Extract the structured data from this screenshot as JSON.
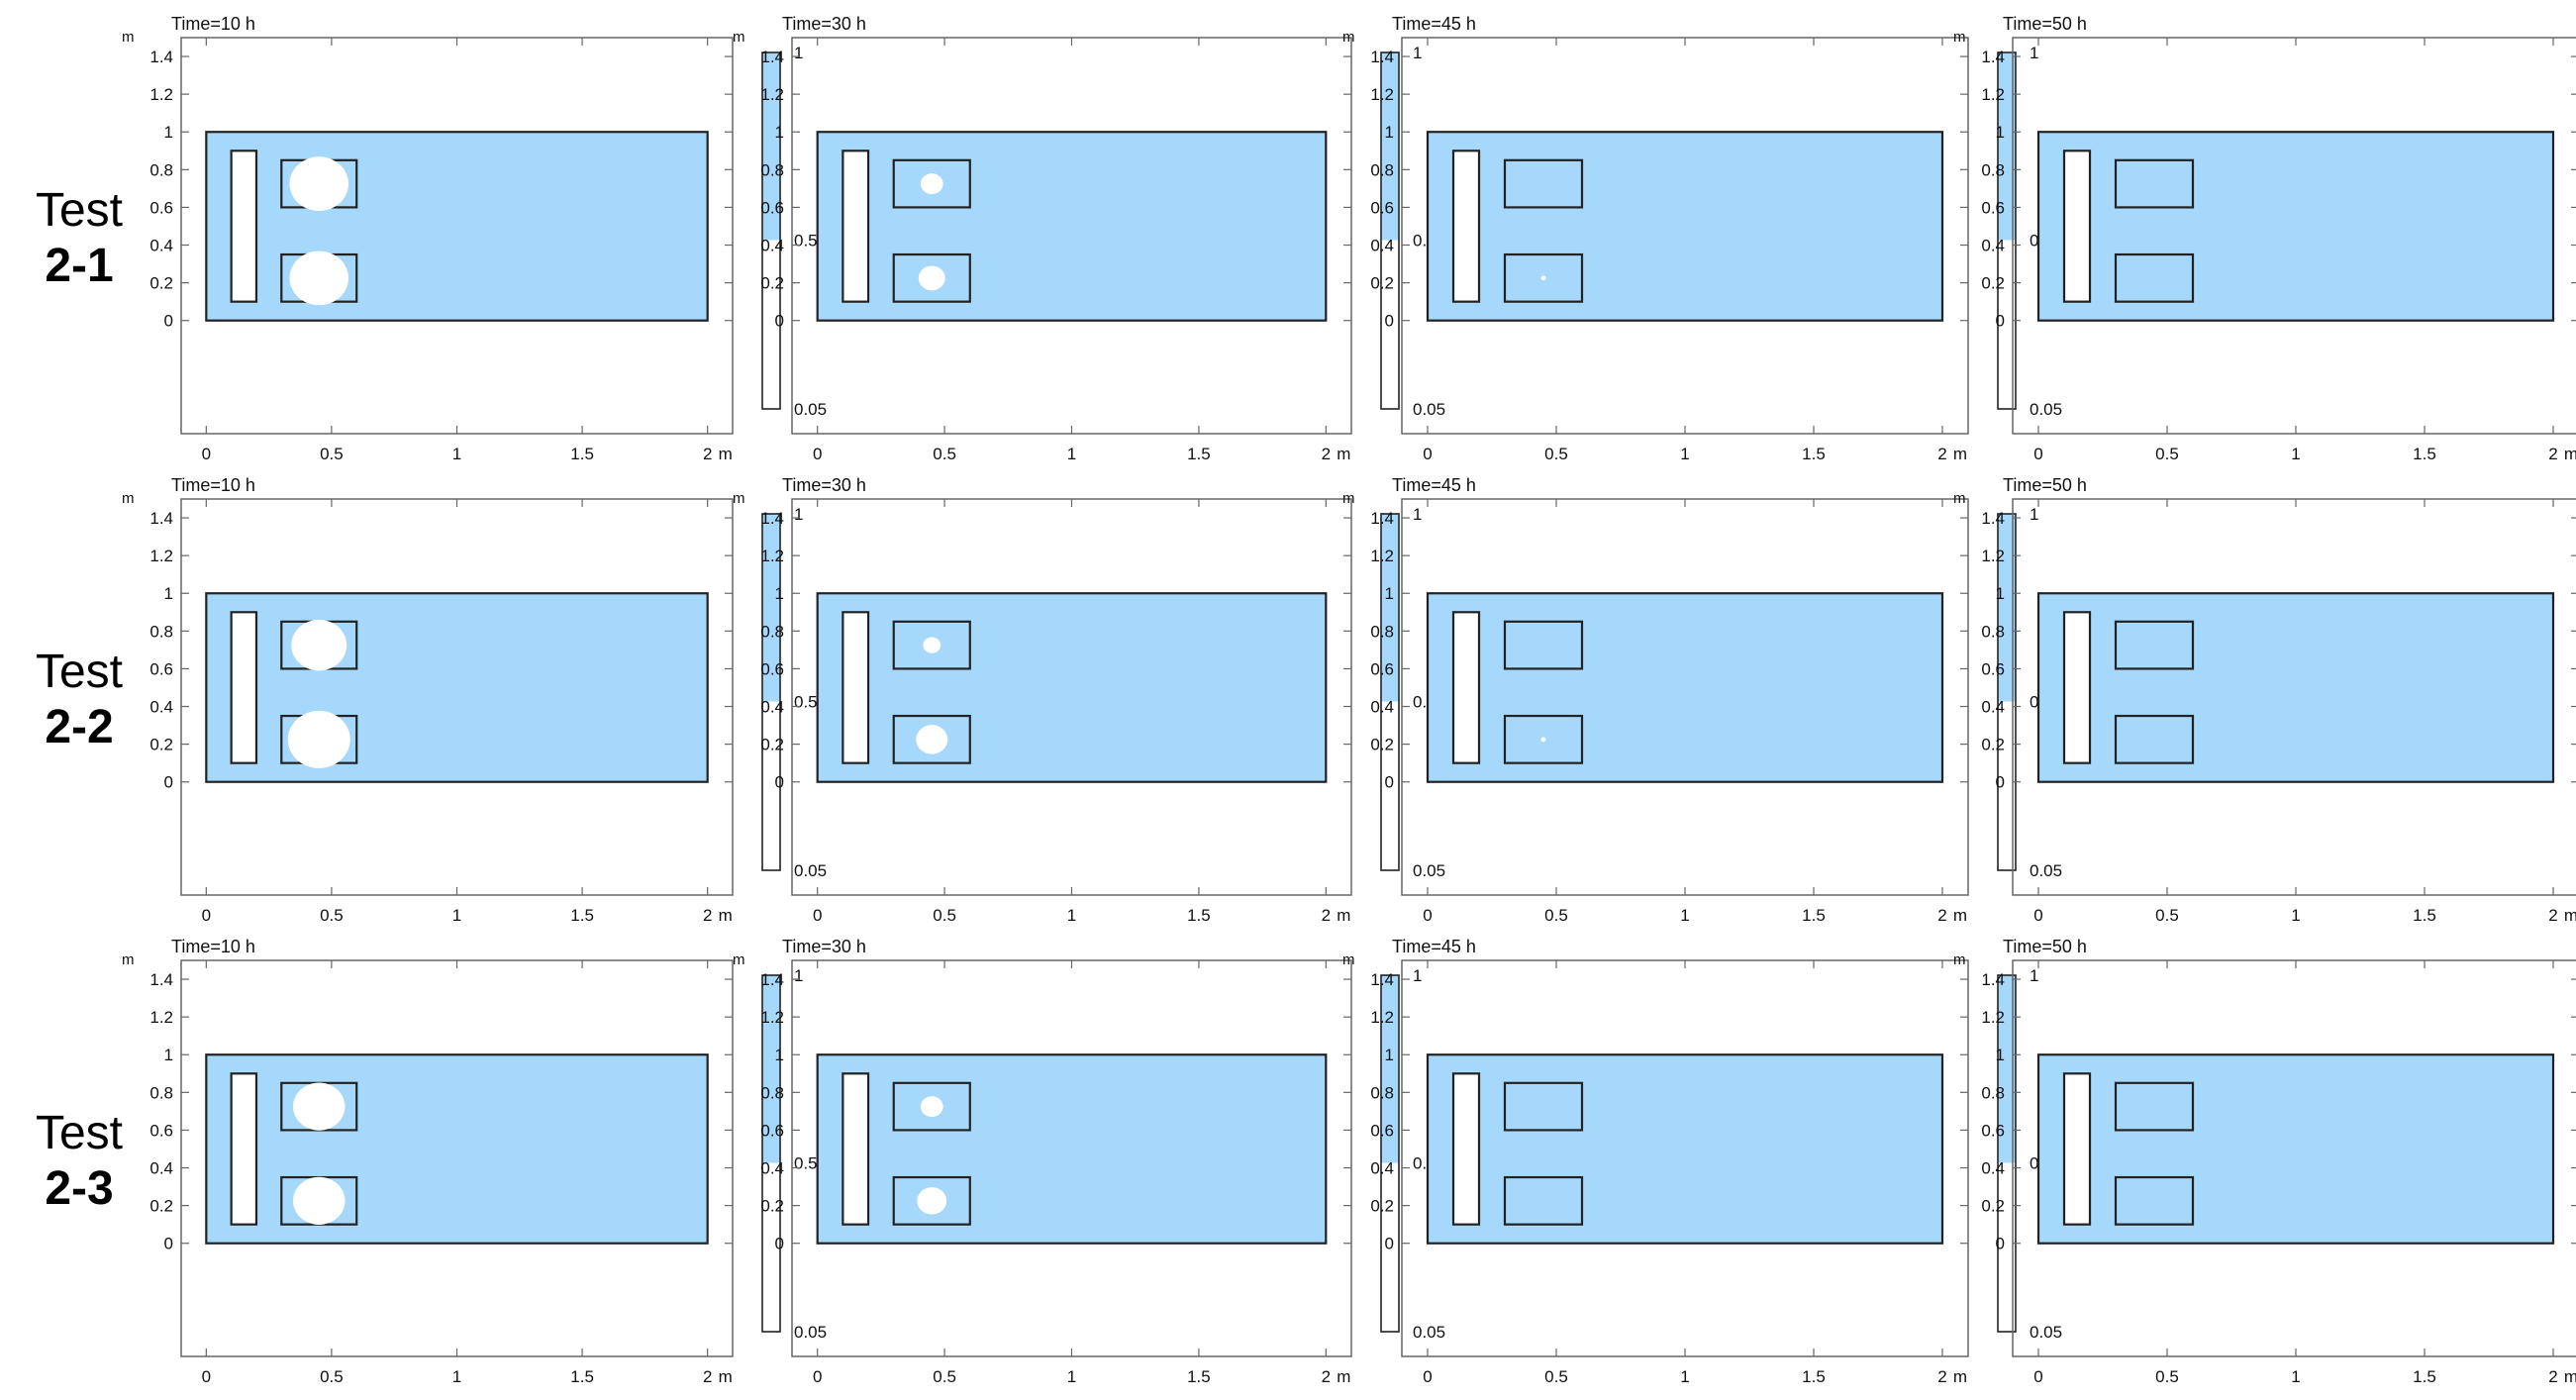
{
  "figure": {
    "rows": [
      {
        "label_line1": "Test",
        "label_line2": "2-1",
        "panels": [
          {
            "time": "Time=10 h",
            "upper_blob": 0.85,
            "lower_blob": 0.85
          },
          {
            "time": "Time=30 h",
            "upper_blob": 0.32,
            "lower_blob": 0.38
          },
          {
            "time": "Time=45 h",
            "upper_blob": 0.0,
            "lower_blob": 0.05
          },
          {
            "time": "Time=50 h",
            "upper_blob": 0.0,
            "lower_blob": 0.0
          }
        ]
      },
      {
        "label_line1": "Test",
        "label_line2": "2-2",
        "panels": [
          {
            "time": "Time=10 h",
            "upper_blob": 0.8,
            "lower_blob": 0.9
          },
          {
            "time": "Time=30 h",
            "upper_blob": 0.25,
            "lower_blob": 0.45
          },
          {
            "time": "Time=45 h",
            "upper_blob": 0.0,
            "lower_blob": 0.06
          },
          {
            "time": "Time=50 h",
            "upper_blob": 0.0,
            "lower_blob": 0.0
          }
        ]
      },
      {
        "label_line1": "Test",
        "label_line2": "2-3",
        "panels": [
          {
            "time": "Time=10 h",
            "upper_blob": 0.75,
            "lower_blob": 0.75
          },
          {
            "time": "Time=30 h",
            "upper_blob": 0.32,
            "lower_blob": 0.42
          },
          {
            "time": "Time=45 h",
            "upper_blob": 0.0,
            "lower_blob": 0.0
          },
          {
            "time": "Time=50 h",
            "upper_blob": 0.0,
            "lower_blob": 0.0
          }
        ]
      }
    ],
    "axes": {
      "x_ticks": [
        "0",
        "0.5",
        "1",
        "1.5",
        "2"
      ],
      "x_unit": "m",
      "y_ticks": [
        "0",
        "0.2",
        "0.4",
        "0.6",
        "0.8",
        "1",
        "1.2",
        "1.4"
      ],
      "y_unit": "m",
      "xlim": [
        -0.1,
        2.1
      ],
      "ylim": [
        -0.6,
        1.5
      ]
    },
    "colorbar": {
      "ticks": [
        "1",
        "0.5",
        "0.05"
      ],
      "range": [
        0.05,
        1
      ],
      "threshold": 0.5
    },
    "colors": {
      "fill": "#a6d8fb",
      "line": "#222222",
      "blob": "#ffffff"
    }
  }
}
